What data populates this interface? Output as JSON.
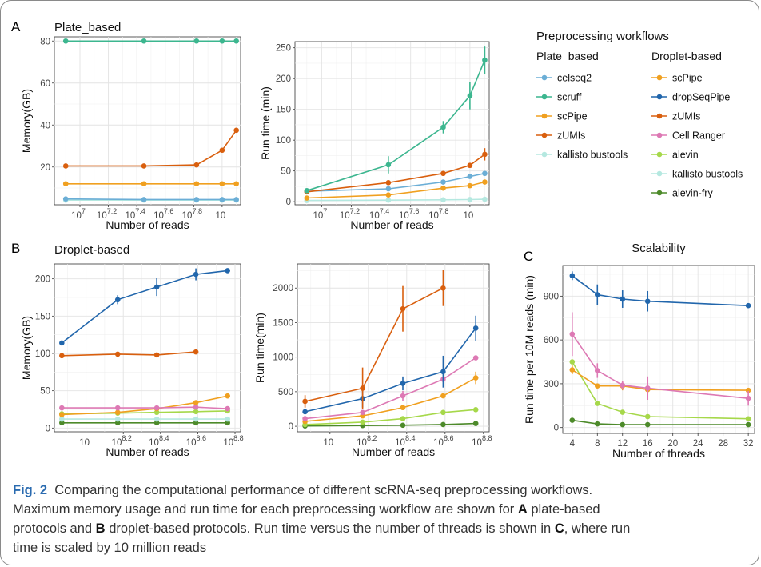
{
  "figure": {
    "caption": {
      "fig_label": "Fig. 2",
      "sentence1": "Comparing the computational performance of different scRNA-seq preprocessing workflows.",
      "sentence2_a": "Maximum memory usage and run time for each preprocessing workflow are shown for",
      "panel_a_ref": "A",
      "sentence2_b": "plate-based",
      "sentence2_c": "protocols and",
      "panel_b_ref": "B",
      "sentence2_d": "droplet-based protocols. Run time versus the number of threads is shown in",
      "panel_c_ref": "C",
      "sentence2_e": ", where run",
      "sentence2_f": "time is scaled by 10 million reads"
    },
    "panel_letters": {
      "a": "A",
      "b": "B",
      "c": "C"
    }
  },
  "colors": {
    "celseq2": "#6baed6",
    "scruff": "#3cb68f",
    "scPipe": "#f0a020",
    "zUMIs": "#d95f0e",
    "kallisto bustools": "#b5e8e0",
    "dropSeqPipe": "#2166ac",
    "Cell Ranger": "#dd79b4",
    "alevin": "#a6d84a",
    "alevin-fry": "#4d8a2a"
  },
  "legend": {
    "title": "Preprocessing workflows",
    "plate_title": "Plate_based",
    "plate_items": [
      "celseq2",
      "scruff",
      "scPipe",
      "zUMIs",
      "kallisto bustools"
    ],
    "droplet_title": "Droplet-based",
    "droplet_items": [
      "scPipe",
      "dropSeqPipe",
      "zUMIs",
      "Cell Ranger",
      "alevin",
      "kallisto bustools",
      "alevin-fry"
    ]
  },
  "chart_data": [
    {
      "id": "A-memory",
      "type": "line",
      "title": "Plate_based",
      "xlabel": "Number of reads",
      "ylabel": "Memory(GB)",
      "x_scale": "log10",
      "xlim": [
        6.82,
        8.13
      ],
      "ylim": [
        2,
        82
      ],
      "x_ticks": [
        7,
        7.2,
        7.4,
        7.6,
        7.8,
        8
      ],
      "x_tick_labels": [
        "7",
        "7.2",
        "7.4",
        "7.6",
        "7.8",
        ""
      ],
      "y_ticks": [
        20,
        40,
        60,
        80
      ],
      "y_tick_labels": [
        "20",
        "40",
        "60",
        "80"
      ],
      "x": [
        6.9,
        7.45,
        7.82,
        8.0,
        8.1
      ],
      "series": [
        {
          "name": "scruff",
          "values": [
            80,
            80,
            80,
            80,
            80
          ]
        },
        {
          "name": "zUMIs",
          "values": [
            20.5,
            20.5,
            21,
            28,
            37.5
          ]
        },
        {
          "name": "scPipe",
          "values": [
            12,
            12,
            12,
            12,
            12
          ]
        },
        {
          "name": "celseq2",
          "values": [
            4.8,
            4.5,
            4.5,
            4.5,
            4.5
          ]
        },
        {
          "name": "kallisto bustools",
          "values": [
            4.2,
            4.2,
            4.2,
            4.2,
            4.2
          ]
        }
      ]
    },
    {
      "id": "A-runtime",
      "type": "line",
      "xlabel": "Number of reads",
      "ylabel": "Run time (min)",
      "x_scale": "log10",
      "xlim": [
        6.82,
        8.13
      ],
      "ylim": [
        -5,
        260
      ],
      "x_ticks": [
        7,
        7.2,
        7.4,
        7.6,
        7.8,
        8
      ],
      "x_tick_labels": [
        "7",
        "7.2",
        "7.4",
        "7.6",
        "7.8",
        ""
      ],
      "y_ticks": [
        0,
        50,
        100,
        150,
        200,
        250
      ],
      "y_tick_labels": [
        "0",
        "50",
        "100",
        "150",
        "200",
        "250"
      ],
      "x": [
        6.9,
        7.45,
        7.82,
        8.0,
        8.1
      ],
      "series": [
        {
          "name": "scruff",
          "values": [
            18,
            60,
            121,
            172,
            230
          ],
          "err": [
            0,
            14,
            10,
            22,
            22
          ]
        },
        {
          "name": "zUMIs",
          "values": [
            16,
            31,
            46,
            59,
            77
          ],
          "err": [
            0,
            0,
            0,
            0,
            10
          ]
        },
        {
          "name": "celseq2",
          "values": [
            17,
            21,
            32,
            41,
            46
          ],
          "err": [
            0,
            0,
            0,
            0,
            0
          ]
        },
        {
          "name": "scPipe",
          "values": [
            6,
            11,
            22,
            26,
            32
          ],
          "err": [
            0,
            0,
            0,
            0,
            0
          ]
        },
        {
          "name": "kallisto bustools",
          "values": [
            2,
            2.5,
            3,
            3.5,
            4
          ],
          "err": [
            0,
            0,
            0,
            0,
            0
          ]
        }
      ]
    },
    {
      "id": "B-memory",
      "type": "line",
      "title": "Droplet-based",
      "xlabel": "Number of reads",
      "ylabel": "Memory(GB)",
      "x_scale": "log10",
      "xlim": [
        7.83,
        8.83
      ],
      "ylim": [
        -5,
        220
      ],
      "x_ticks": [
        8,
        8.2,
        8.4,
        8.6,
        8.8
      ],
      "x_tick_labels": [
        "",
        "8.2",
        "8.4",
        "8.6",
        "8.8"
      ],
      "y_ticks": [
        0,
        50,
        100,
        150,
        200
      ],
      "y_tick_labels": [
        "0",
        "50",
        "100",
        "150",
        "200"
      ],
      "x": [
        7.87,
        8.17,
        8.38,
        8.59,
        8.76
      ],
      "series": [
        {
          "name": "dropSeqPipe",
          "values": [
            114,
            172,
            189,
            206,
            211
          ],
          "err": [
            0,
            6,
            12,
            8,
            0
          ]
        },
        {
          "name": "zUMIs",
          "values": [
            97,
            99,
            98,
            102,
            null
          ],
          "err": [
            0,
            0,
            0,
            0,
            0
          ]
        },
        {
          "name": "Cell Ranger",
          "values": [
            27,
            27,
            27,
            28,
            26
          ],
          "err": [
            0,
            0,
            0,
            0,
            0
          ]
        },
        {
          "name": "scPipe",
          "values": [
            18,
            21,
            26,
            34,
            43
          ],
          "err": [
            0,
            0,
            0,
            0,
            0
          ]
        },
        {
          "name": "alevin",
          "values": [
            19,
            20,
            21,
            22,
            23
          ],
          "err": [
            0,
            0,
            0,
            0,
            0
          ]
        },
        {
          "name": "kallisto bustools",
          "values": [
            12,
            12,
            12,
            12,
            12
          ],
          "err": [
            0,
            0,
            0,
            0,
            0
          ]
        },
        {
          "name": "alevin-fry",
          "values": [
            7,
            7,
            7,
            7,
            7
          ],
          "err": [
            0,
            0,
            0,
            0,
            0
          ]
        }
      ]
    },
    {
      "id": "B-runtime",
      "type": "line",
      "xlabel": "Number of reads",
      "ylabel": "Run time(min)",
      "x_scale": "log10",
      "xlim": [
        7.83,
        8.83
      ],
      "ylim": [
        -80,
        2350
      ],
      "x_ticks": [
        8,
        8.2,
        8.4,
        8.6,
        8.8
      ],
      "x_tick_labels": [
        "",
        "8.2",
        "8.4",
        "8.6",
        "8.8"
      ],
      "y_ticks": [
        0,
        500,
        1000,
        1500,
        2000
      ],
      "y_tick_labels": [
        "0",
        "500",
        "1000",
        "1500",
        "2000"
      ],
      "x": [
        7.87,
        8.17,
        8.38,
        8.59,
        8.76
      ],
      "series": [
        {
          "name": "zUMIs",
          "values": [
            360,
            550,
            1700,
            2000,
            null
          ],
          "err": [
            90,
            300,
            330,
            260,
            0
          ]
        },
        {
          "name": "dropSeqPipe",
          "values": [
            210,
            400,
            620,
            790,
            1420
          ],
          "err": [
            0,
            130,
            100,
            230,
            180
          ]
        },
        {
          "name": "Cell Ranger",
          "values": [
            110,
            200,
            440,
            680,
            990
          ],
          "err": [
            0,
            0,
            70,
            0,
            0
          ]
        },
        {
          "name": "scPipe",
          "values": [
            70,
            150,
            270,
            440,
            700
          ],
          "err": [
            0,
            0,
            0,
            0,
            90
          ]
        },
        {
          "name": "alevin",
          "values": [
            25,
            60,
            110,
            200,
            240
          ],
          "err": [
            0,
            0,
            0,
            0,
            0
          ]
        },
        {
          "name": "alevin-fry",
          "values": [
            5,
            10,
            15,
            25,
            40
          ],
          "err": [
            0,
            0,
            0,
            0,
            0
          ]
        }
      ]
    },
    {
      "id": "C-scalability",
      "type": "line",
      "title": "Scalability",
      "xlabel": "Number of threads",
      "ylabel": "Run time per 10M reads (min)",
      "x_scale": "linear",
      "xlim": [
        2.5,
        33
      ],
      "ylim": [
        -40,
        1110
      ],
      "x_ticks": [
        4,
        8,
        12,
        16,
        20,
        24,
        28,
        32
      ],
      "x_tick_labels": [
        "4",
        "8",
        "12",
        "16",
        "20",
        "24",
        "28",
        "32"
      ],
      "y_ticks": [
        0,
        300,
        600,
        900
      ],
      "y_tick_labels": [
        "0",
        "300",
        "600",
        "900"
      ],
      "x": [
        4,
        8,
        12,
        16,
        32
      ],
      "series": [
        {
          "name": "dropSeqPipe",
          "values": [
            1040,
            910,
            880,
            865,
            835
          ],
          "err": [
            30,
            70,
            60,
            70,
            0
          ]
        },
        {
          "name": "Cell Ranger",
          "values": [
            640,
            390,
            290,
            270,
            200
          ],
          "err": [
            150,
            50,
            30,
            80,
            50
          ]
        },
        {
          "name": "scPipe",
          "values": [
            395,
            285,
            285,
            260,
            255
          ],
          "err": [
            30,
            0,
            30,
            25,
            0
          ]
        },
        {
          "name": "alevin",
          "values": [
            450,
            165,
            105,
            75,
            60
          ],
          "err": [
            0,
            0,
            0,
            0,
            0
          ]
        },
        {
          "name": "alevin-fry",
          "values": [
            50,
            25,
            20,
            20,
            20
          ],
          "err": [
            0,
            0,
            0,
            0,
            0
          ]
        }
      ]
    }
  ]
}
